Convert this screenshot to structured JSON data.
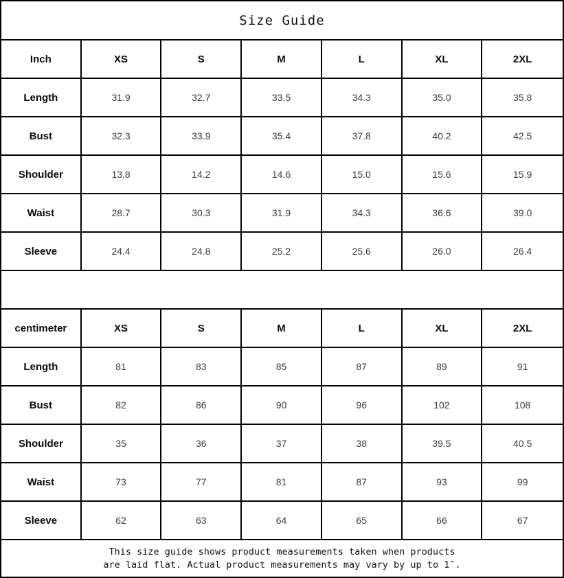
{
  "title": "Size Guide",
  "colors": {
    "background": "#ffffff",
    "border": "#000000",
    "header_text": "#0a0a0a",
    "value_text": "#3a3a3a"
  },
  "tables": [
    {
      "unit": "Inch",
      "sizes": [
        "XS",
        "S",
        "M",
        "L",
        "XL",
        "2XL"
      ],
      "rows": [
        {
          "label": "Length",
          "values": [
            "31.9",
            "32.7",
            "33.5",
            "34.3",
            "35.0",
            "35.8"
          ]
        },
        {
          "label": "Bust",
          "values": [
            "32.3",
            "33.9",
            "35.4",
            "37.8",
            "40.2",
            "42.5"
          ]
        },
        {
          "label": "Shoulder",
          "values": [
            "13.8",
            "14.2",
            "14.6",
            "15.0",
            "15.6",
            "15.9"
          ]
        },
        {
          "label": "Waist",
          "values": [
            "28.7",
            "30.3",
            "31.9",
            "34.3",
            "36.6",
            "39.0"
          ]
        },
        {
          "label": "Sleeve",
          "values": [
            "24.4",
            "24.8",
            "25.2",
            "25.6",
            "26.0",
            "26.4"
          ]
        }
      ]
    },
    {
      "unit": "centimeter",
      "sizes": [
        "XS",
        "S",
        "M",
        "L",
        "XL",
        "2XL"
      ],
      "rows": [
        {
          "label": "Length",
          "values": [
            "81",
            "83",
            "85",
            "87",
            "89",
            "91"
          ]
        },
        {
          "label": "Bust",
          "values": [
            "82",
            "86",
            "90",
            "96",
            "102",
            "108"
          ]
        },
        {
          "label": "Shoulder",
          "values": [
            "35",
            "36",
            "37",
            "38",
            "39.5",
            "40.5"
          ]
        },
        {
          "label": "Waist",
          "values": [
            "73",
            "77",
            "81",
            "87",
            "93",
            "99"
          ]
        },
        {
          "label": "Sleeve",
          "values": [
            "62",
            "63",
            "64",
            "65",
            "66",
            "67"
          ]
        }
      ]
    }
  ],
  "footer": {
    "line1": "This size guide shows product measurements taken when products",
    "line2": "are laid flat. Actual product measurements may vary by up to 1″."
  }
}
